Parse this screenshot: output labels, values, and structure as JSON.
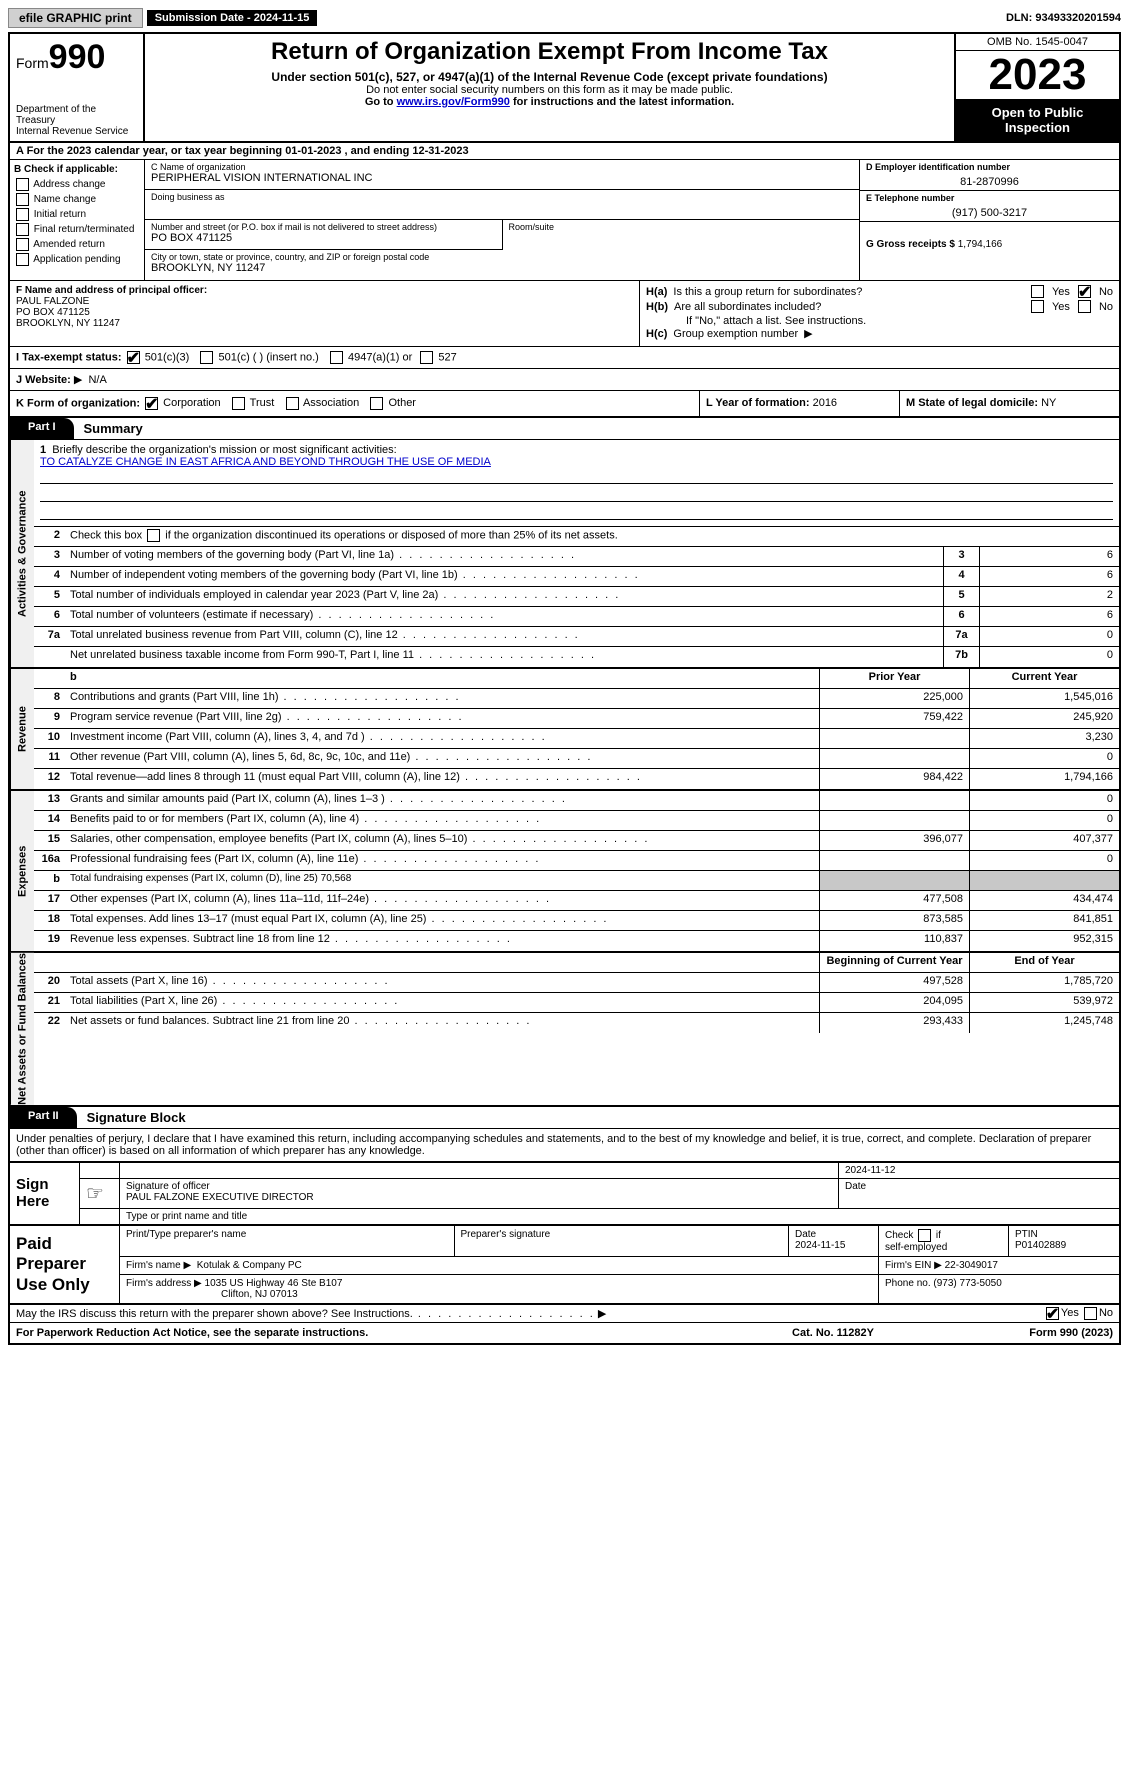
{
  "top": {
    "efile": "efile GRAPHIC print",
    "submission": "Submission Date - 2024-11-15",
    "dln": "DLN: 93493320201594"
  },
  "header": {
    "form_word": "Form",
    "form_num": "990",
    "title": "Return of Organization Exempt From Income Tax",
    "sub1": "Under section 501(c), 527, or 4947(a)(1) of the Internal Revenue Code (except private foundations)",
    "sub2": "Do not enter social security numbers on this form as it may be made public.",
    "sub3_pre": "Go to ",
    "sub3_link": "www.irs.gov/Form990",
    "sub3_post": " for instructions and the latest information.",
    "dept": "Department of the Treasury\nInternal Revenue Service",
    "omb": "OMB No. 1545-0047",
    "year": "2023",
    "open": "Open to Public Inspection"
  },
  "rowA": "A For the 2023 calendar year, or tax year beginning 01-01-2023   , and ending 12-31-2023",
  "colB": {
    "label": "B Check if applicable:",
    "opts": [
      "Address change",
      "Name change",
      "Initial return",
      "Final return/terminated",
      "Amended return",
      "Application pending"
    ]
  },
  "colC": {
    "name_lbl": "C Name of organization",
    "name": "PERIPHERAL VISION INTERNATIONAL INC",
    "dba_lbl": "Doing business as",
    "addr_lbl": "Number and street (or P.O. box if mail is not delivered to street address)",
    "addr": "PO BOX 471125",
    "room_lbl": "Room/suite",
    "city_lbl": "City or town, state or province, country, and ZIP or foreign postal code",
    "city": "BROOKLYN, NY  11247"
  },
  "colD": {
    "ein_lbl": "D Employer identification number",
    "ein": "81-2870996",
    "phone_lbl": "E Telephone number",
    "phone": "(917) 500-3217",
    "gross_lbl": "G Gross receipts $",
    "gross": "1,794,166"
  },
  "rowF": {
    "lbl": "F  Name and address of principal officer:",
    "name": "PAUL FALZONE",
    "addr1": "PO BOX 471125",
    "addr2": "BROOKLYN, NY  11247"
  },
  "rowH": {
    "ha": "H(a)  Is this a group return for subordinates?",
    "hb": "H(b)  Are all subordinates included?",
    "hb_note": "If \"No,\" attach a list. See instructions.",
    "hc": "H(c)  Group exemption number",
    "yes": "Yes",
    "no": "No"
  },
  "rowI": {
    "lbl": "I   Tax-exempt status:",
    "c3": "501(c)(3)",
    "cother": "501(c) (  ) (insert no.)",
    "a1": "4947(a)(1) or",
    "s527": "527"
  },
  "rowJ": {
    "lbl": "J   Website:",
    "val": "N/A",
    "arrow": "▶"
  },
  "rowK": {
    "lbl": "K Form of organization:",
    "opts": [
      "Corporation",
      "Trust",
      "Association",
      "Other"
    ],
    "checked": 0
  },
  "rowL": {
    "lbl": "L Year of formation:",
    "val": "2016"
  },
  "rowM": {
    "lbl": "M State of legal domicile:",
    "val": "NY"
  },
  "part1": {
    "tab": "Part I",
    "title": "Summary"
  },
  "vtabs": [
    "Activities & Governance",
    "Revenue",
    "Expenses",
    "Net Assets or Fund Balances"
  ],
  "mission_lbl": "Briefly describe the organization's mission or most significant activities:",
  "mission": "TO CATALYZE CHANGE IN EAST AFRICA AND BEYOND THROUGH THE USE OF MEDIA",
  "line2": "Check this box      if the organization discontinued its operations or disposed of more than 25% of its net assets.",
  "gov": [
    {
      "n": "3",
      "d": "Number of voting members of the governing body (Part VI, line 1a)",
      "bn": "3",
      "v": "6"
    },
    {
      "n": "4",
      "d": "Number of independent voting members of the governing body (Part VI, line 1b)",
      "bn": "4",
      "v": "6"
    },
    {
      "n": "5",
      "d": "Total number of individuals employed in calendar year 2023 (Part V, line 2a)",
      "bn": "5",
      "v": "2"
    },
    {
      "n": "6",
      "d": "Total number of volunteers (estimate if necessary)",
      "bn": "6",
      "v": "6"
    },
    {
      "n": "7a",
      "d": "Total unrelated business revenue from Part VIII, column (C), line 12",
      "bn": "7a",
      "v": "0"
    },
    {
      "n": "",
      "d": "Net unrelated business taxable income from Form 990-T, Part I, line 11",
      "bn": "7b",
      "v": "0"
    }
  ],
  "col_headers": {
    "prior": "Prior Year",
    "curr": "Current Year"
  },
  "rev": [
    {
      "n": "8",
      "d": "Contributions and grants (Part VIII, line 1h)",
      "p": "225,000",
      "c": "1,545,016"
    },
    {
      "n": "9",
      "d": "Program service revenue (Part VIII, line 2g)",
      "p": "759,422",
      "c": "245,920"
    },
    {
      "n": "10",
      "d": "Investment income (Part VIII, column (A), lines 3, 4, and 7d )",
      "p": "",
      "c": "3,230"
    },
    {
      "n": "11",
      "d": "Other revenue (Part VIII, column (A), lines 5, 6d, 8c, 9c, 10c, and 11e)",
      "p": "",
      "c": "0"
    },
    {
      "n": "12",
      "d": "Total revenue—add lines 8 through 11 (must equal Part VIII, column (A), line 12)",
      "p": "984,422",
      "c": "1,794,166"
    }
  ],
  "exp": [
    {
      "n": "13",
      "d": "Grants and similar amounts paid (Part IX, column (A), lines 1–3 )",
      "p": "",
      "c": "0"
    },
    {
      "n": "14",
      "d": "Benefits paid to or for members (Part IX, column (A), line 4)",
      "p": "",
      "c": "0"
    },
    {
      "n": "15",
      "d": "Salaries, other compensation, employee benefits (Part IX, column (A), lines 5–10)",
      "p": "396,077",
      "c": "407,377"
    },
    {
      "n": "16a",
      "d": "Professional fundraising fees (Part IX, column (A), line 11e)",
      "p": "",
      "c": "0"
    },
    {
      "n": "b",
      "d": "Total fundraising expenses (Part IX, column (D), line 25) 70,568",
      "p": "SHADE",
      "c": "SHADE",
      "small": true
    },
    {
      "n": "17",
      "d": "Other expenses (Part IX, column (A), lines 11a–11d, 11f–24e)",
      "p": "477,508",
      "c": "434,474"
    },
    {
      "n": "18",
      "d": "Total expenses. Add lines 13–17 (must equal Part IX, column (A), line 25)",
      "p": "873,585",
      "c": "841,851"
    },
    {
      "n": "19",
      "d": "Revenue less expenses. Subtract line 18 from line 12",
      "p": "110,837",
      "c": "952,315"
    }
  ],
  "net_header": {
    "prior": "Beginning of Current Year",
    "curr": "End of Year"
  },
  "net": [
    {
      "n": "20",
      "d": "Total assets (Part X, line 16)",
      "p": "497,528",
      "c": "1,785,720"
    },
    {
      "n": "21",
      "d": "Total liabilities (Part X, line 26)",
      "p": "204,095",
      "c": "539,972"
    },
    {
      "n": "22",
      "d": "Net assets or fund balances. Subtract line 21 from line 20",
      "p": "293,433",
      "c": "1,245,748"
    }
  ],
  "part2": {
    "tab": "Part II",
    "title": "Signature Block"
  },
  "penalty": "Under penalties of perjury, I declare that I have examined this return, including accompanying schedules and statements, and to the best of my knowledge and belief, it is true, correct, and complete. Declaration of preparer (other than officer) is based on all information of which preparer has any knowledge.",
  "sign": {
    "label": "Sign Here",
    "sig_lbl": "Signature of officer",
    "date_lbl": "Date",
    "date": "2024-11-12",
    "name": "PAUL FALZONE  EXECUTIVE DIRECTOR",
    "name_lbl": "Type or print name and title"
  },
  "paid": {
    "label": "Paid Preparer Use Only",
    "h1": "Print/Type preparer's name",
    "h2": "Preparer's signature",
    "h3": "Date",
    "h3v": "2024-11-15",
    "h4": "Check       if self-employed",
    "h5": "PTIN",
    "h5v": "P01402889",
    "firm_lbl": "Firm's name",
    "firm": "Kotulak & Company PC",
    "ein_lbl": "Firm's EIN",
    "ein": "22-3049017",
    "addr_lbl": "Firm's address",
    "addr1": "1035 US Highway 46 Ste B107",
    "addr2": "Clifton, NJ  07013",
    "phone_lbl": "Phone no.",
    "phone": "(973) 773-5050"
  },
  "discuss": "May the IRS discuss this return with the preparer shown above? See Instructions.",
  "bottom": {
    "l": "For Paperwork Reduction Act Notice, see the separate instructions.",
    "m": "Cat. No. 11282Y",
    "r": "Form 990 (2023)"
  }
}
